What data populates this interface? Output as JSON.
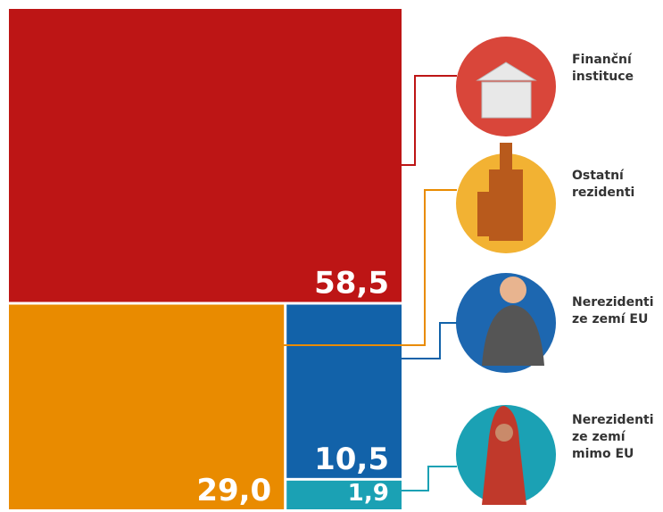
{
  "chart_data": {
    "type": "treemap",
    "categories": [
      "Finanční instituce",
      "Ostatní rezidenti",
      "Nerezidenti ze zemí EU",
      "Nerezidenti ze zemí mimo EU"
    ],
    "values": [
      58.5,
      29.0,
      10.5,
      1.9
    ],
    "value_labels": [
      "58,5",
      "29,0",
      "10,5",
      "1,9"
    ],
    "colors": [
      "#bd1515",
      "#e98b00",
      "#1262a9",
      "#1ba1b4"
    ]
  }
}
